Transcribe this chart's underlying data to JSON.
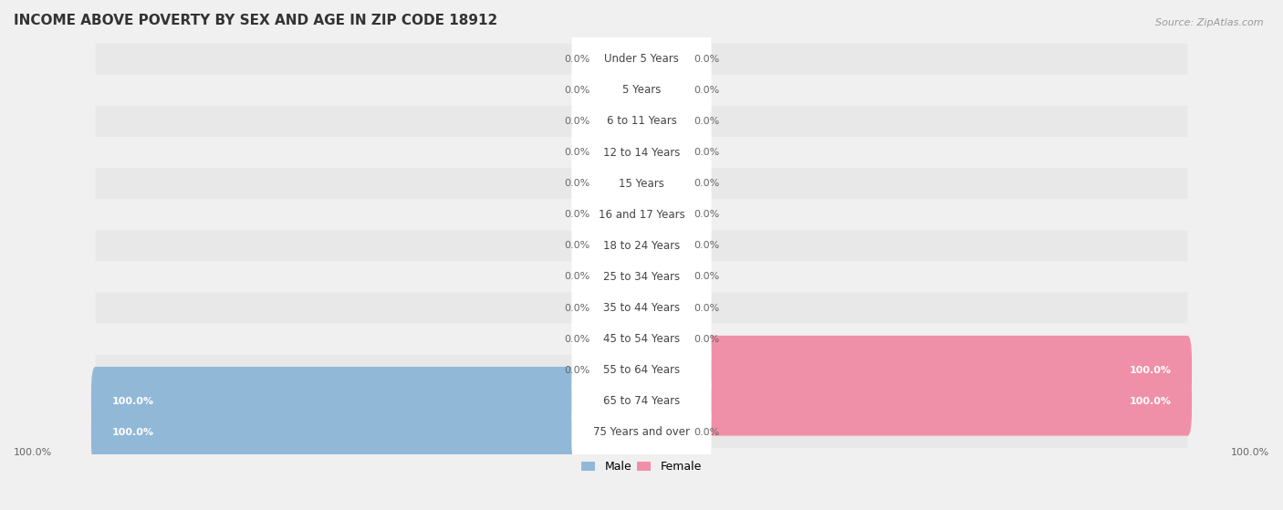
{
  "title": "INCOME ABOVE POVERTY BY SEX AND AGE IN ZIP CODE 18912",
  "source": "Source: ZipAtlas.com",
  "categories": [
    "Under 5 Years",
    "5 Years",
    "6 to 11 Years",
    "12 to 14 Years",
    "15 Years",
    "16 and 17 Years",
    "18 to 24 Years",
    "25 to 34 Years",
    "35 to 44 Years",
    "45 to 54 Years",
    "55 to 64 Years",
    "65 to 74 Years",
    "75 Years and over"
  ],
  "male_values": [
    0.0,
    0.0,
    0.0,
    0.0,
    0.0,
    0.0,
    0.0,
    0.0,
    0.0,
    0.0,
    0.0,
    100.0,
    100.0
  ],
  "female_values": [
    0.0,
    0.0,
    0.0,
    0.0,
    0.0,
    0.0,
    0.0,
    0.0,
    0.0,
    0.0,
    100.0,
    100.0,
    0.0
  ],
  "male_color": "#92b8d8",
  "female_color": "#f090a8",
  "male_label": "Male",
  "female_label": "Female",
  "bg_color": "#f0f0f0",
  "row_bg_color": "#e8e8e8",
  "bar_bg_color": "#ffffff",
  "title_fontsize": 11,
  "label_fontsize": 8.5,
  "value_fontsize": 8,
  "bar_height": 0.62,
  "max_value": 100.0,
  "zero_bar_width": 8.0
}
